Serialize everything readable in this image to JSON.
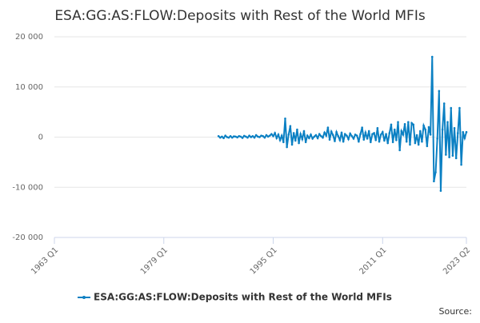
{
  "chart_data": {
    "type": "line",
    "title": "ESA:GG:AS:FLOW:Deposits with Rest of the World MFIs",
    "source": "Source:",
    "x": [
      1987,
      1987.25,
      1987.5,
      1987.75,
      1988,
      1988.25,
      1988.5,
      1988.75,
      1989,
      1989.25,
      1989.5,
      1989.75,
      1990,
      1990.25,
      1990.5,
      1990.75,
      1991,
      1991.25,
      1991.5,
      1991.75,
      1992,
      1992.25,
      1992.5,
      1992.75,
      1993,
      1993.25,
      1993.5,
      1993.75,
      1994,
      1994.25,
      1994.5,
      1994.75,
      1995,
      1995.25,
      1995.5,
      1995.75,
      1996,
      1996.25,
      1996.5,
      1996.75,
      1997,
      1997.25,
      1997.5,
      1997.75,
      1998,
      1998.25,
      1998.5,
      1998.75,
      1999,
      1999.25,
      1999.5,
      1999.75,
      2000,
      2000.25,
      2000.5,
      2000.75,
      2001,
      2001.25,
      2001.5,
      2001.75,
      2002,
      2002.25,
      2002.5,
      2002.75,
      2003,
      2003.25,
      2003.5,
      2003.75,
      2004,
      2004.25,
      2004.5,
      2004.75,
      2005,
      2005.25,
      2005.5,
      2005.75,
      2006,
      2006.25,
      2006.5,
      2006.75,
      2007,
      2007.25,
      2007.5,
      2007.75,
      2008,
      2008.25,
      2008.5,
      2008.75,
      2009,
      2009.25,
      2009.5,
      2009.75,
      2010,
      2010.25,
      2010.5,
      2010.75,
      2011,
      2011.25,
      2011.5,
      2011.75,
      2012,
      2012.25,
      2012.5,
      2012.75,
      2013,
      2013.25,
      2013.5,
      2013.75,
      2014,
      2014.25,
      2014.5,
      2014.75,
      2015,
      2015.25,
      2015.5,
      2015.75,
      2016,
      2016.25,
      2016.5,
      2016.75,
      2017,
      2017.25,
      2017.5,
      2017.75,
      2018,
      2018.25,
      2018.5,
      2018.75,
      2019,
      2019.25,
      2019.5,
      2019.75,
      2020,
      2020.25,
      2020.5,
      2020.75,
      2021,
      2021.25,
      2021.5,
      2021.75,
      2022,
      2022.25,
      2022.5,
      2022.75,
      2023,
      2023.25
    ],
    "series": [
      {
        "name": "ESA:GG:AS:FLOW:Deposits with Rest of the World MFIs",
        "color": "#0b80c3",
        "values": [
          200,
          -100,
          100,
          -200,
          300,
          0,
          -100,
          200,
          -100,
          150,
          100,
          -50,
          200,
          100,
          -150,
          250,
          100,
          -100,
          300,
          0,
          200,
          -100,
          400,
          100,
          0,
          300,
          200,
          -100,
          400,
          100,
          300,
          600,
          200,
          800,
          -200,
          500,
          -600,
          300,
          -1000,
          3700,
          -2000,
          500,
          2200,
          -1500,
          800,
          -700,
          1500,
          -1200,
          600,
          -400,
          1200,
          -1000,
          300,
          -200,
          500,
          -300,
          100,
          400,
          -200,
          600,
          200,
          -100,
          900,
          300,
          1900,
          -500,
          1100,
          400,
          -800,
          1000,
          200,
          -600,
          900,
          -900,
          600,
          300,
          -400,
          700,
          200,
          -300,
          500,
          300,
          -900,
          600,
          1900,
          -500,
          900,
          -300,
          1200,
          -1000,
          600,
          800,
          -600,
          1800,
          -900,
          500,
          1000,
          -700,
          600,
          -1200,
          800,
          2500,
          -1000,
          1500,
          -600,
          3000,
          -2600,
          1200,
          500,
          2600,
          -900,
          3000,
          -1500,
          2800,
          2500,
          -1200,
          400,
          -1500,
          1200,
          -900,
          2300,
          1500,
          -1800,
          2000,
          500,
          16000,
          -8800,
          -7000,
          -300,
          9200,
          -10700,
          1500,
          6700,
          -3500,
          3000,
          -4000,
          5800,
          -3700,
          1800,
          -4200,
          800,
          5800,
          -5500,
          1000,
          -200,
          1000
        ]
      }
    ],
    "xlim": [
      1963,
      2023.25
    ],
    "xticks": [
      {
        "value": 1963,
        "label": "1963 Q1"
      },
      {
        "value": 1979,
        "label": "1979 Q1"
      },
      {
        "value": 1995,
        "label": "1995 Q1"
      },
      {
        "value": 2011,
        "label": "2011 Q1"
      },
      {
        "value": 2023.25,
        "label": "2023 Q2"
      }
    ],
    "ylim": [
      -20000,
      20000
    ],
    "yticks": [
      {
        "value": -20000,
        "label": "-20 000"
      },
      {
        "value": -10000,
        "label": "-10 000"
      },
      0,
      {
        "value": 10000,
        "label": "10 000"
      },
      {
        "value": 20000,
        "label": "20 000"
      }
    ],
    "grid": true,
    "legend": "bottom"
  }
}
